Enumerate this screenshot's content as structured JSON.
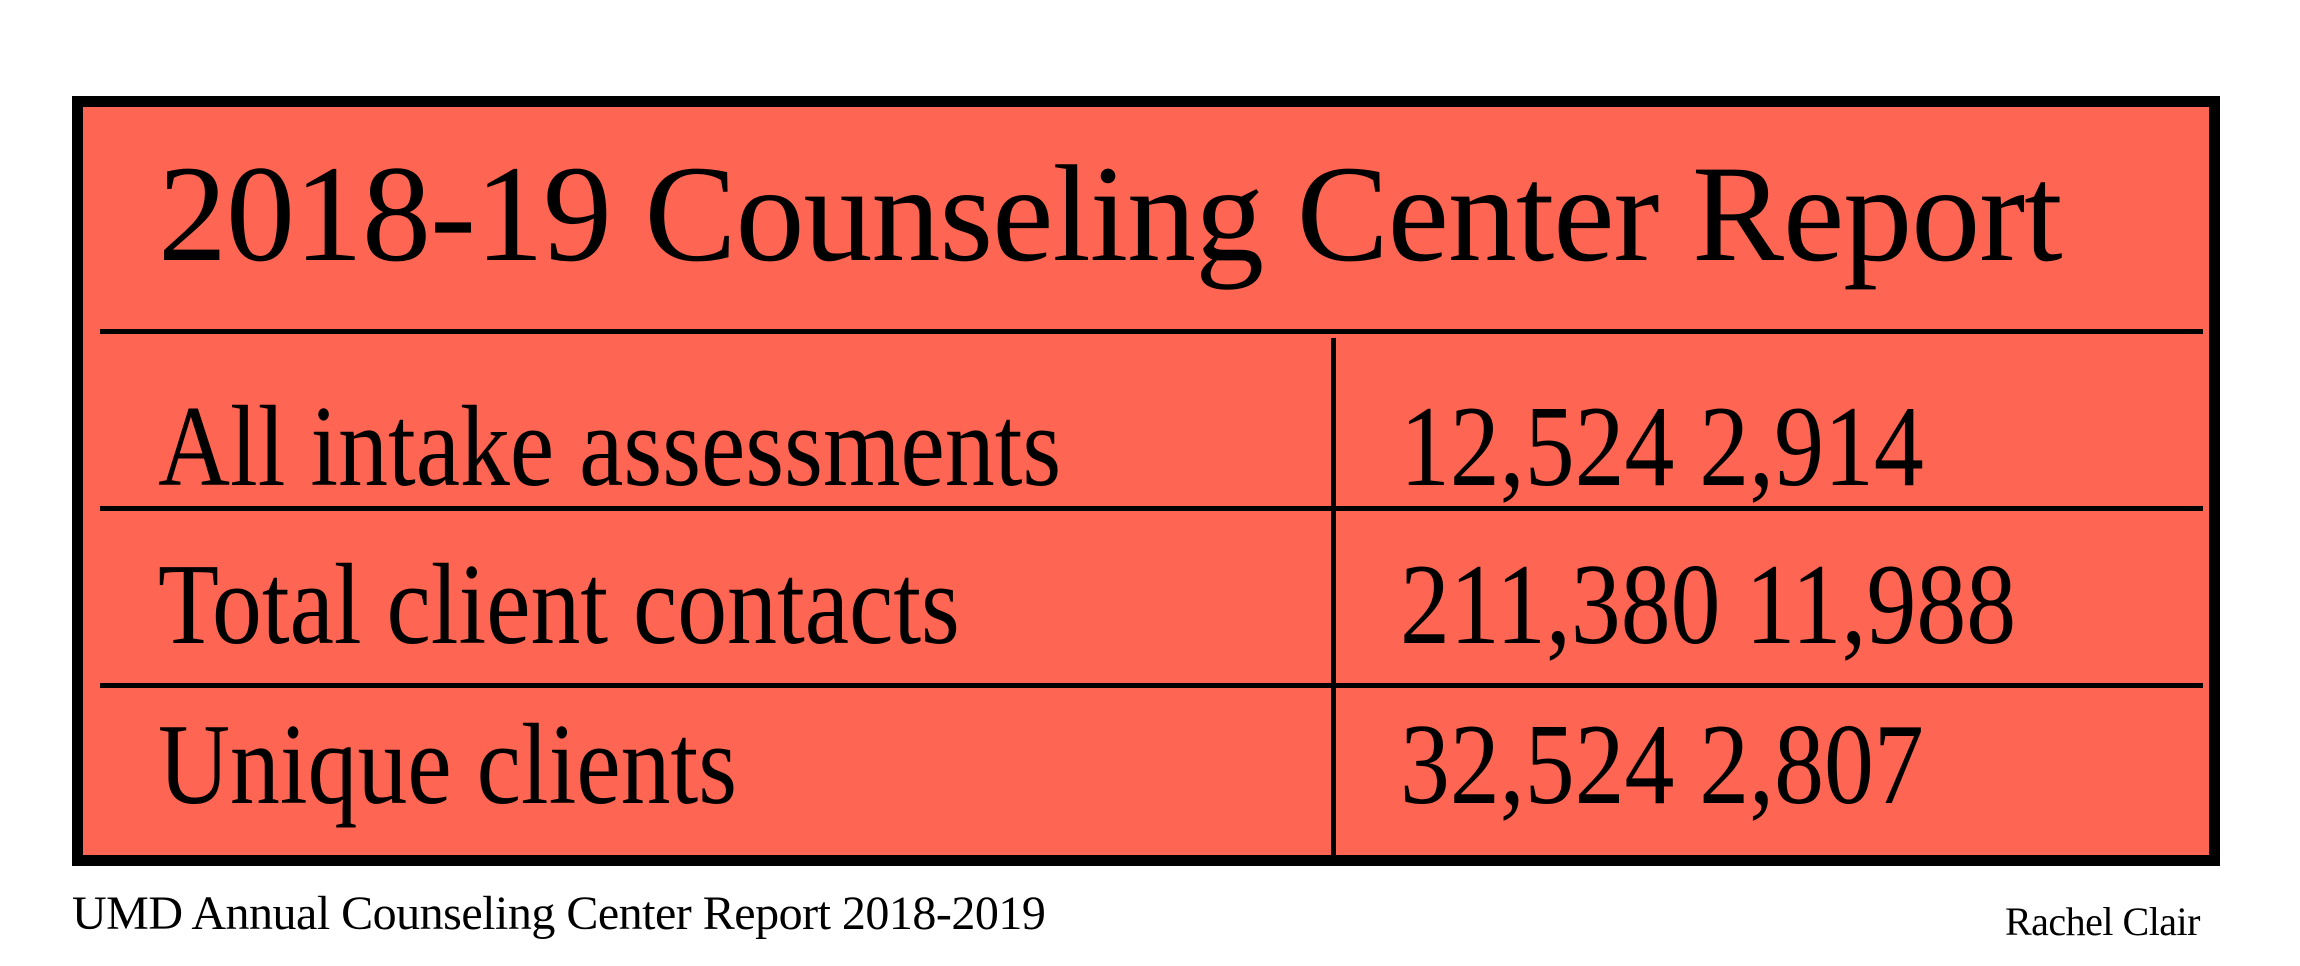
{
  "colors": {
    "panel_background": "#fe6552",
    "border": "#000000",
    "text": "#000000"
  },
  "chart_data": {
    "type": "table",
    "title": "2018-19 Counseling Center Report",
    "rows": [
      {
        "label": "All intake assessments",
        "value": "12,524 2,914"
      },
      {
        "label": "Total client contacts",
        "value": "211,380 11,988"
      },
      {
        "label": "Unique clients",
        "value": "32,524 2,807"
      }
    ]
  },
  "footer": {
    "source": "UMD Annual Counseling Center Report 2018-2019",
    "credit": "Rachel Clair"
  }
}
